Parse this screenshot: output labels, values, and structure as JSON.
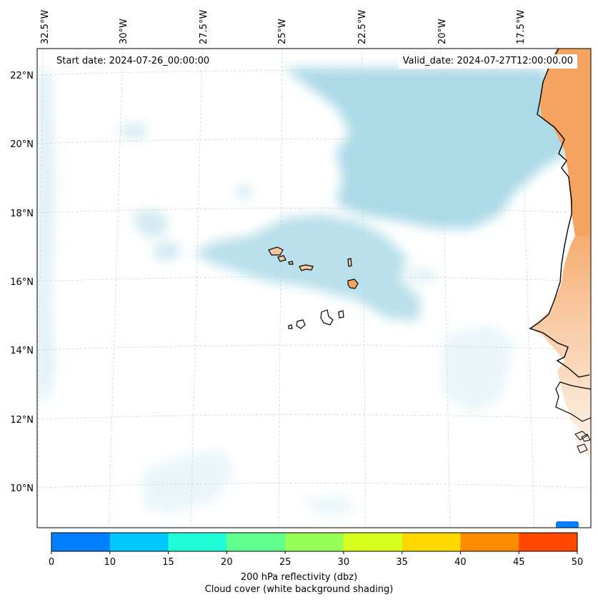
{
  "header": {
    "start_date": "Start date: 2024-07-26_00:00:00",
    "valid_date": "Valid_date: 2024-07-27T12:00:00.00"
  },
  "lon_labels": [
    "32.5°W",
    "30°W",
    "27.5°W",
    "25°W",
    "22.5°W",
    "20°W",
    "17.5°W"
  ],
  "lat_labels": [
    "22°N",
    "20°N",
    "18°N",
    "16°N",
    "14°N",
    "12°N",
    "10°N"
  ],
  "colorbar": {
    "ticks": [
      "0",
      "10",
      "15",
      "20",
      "25",
      "30",
      "35",
      "40",
      "45",
      "50"
    ],
    "colors": [
      "#0080ff",
      "#00c8ff",
      "#20ffd8",
      "#60ff90",
      "#98ff58",
      "#d8ff20",
      "#ffd800",
      "#ff8c00",
      "#ff4800"
    ],
    "label_line1": "200 hPa reflectivity (dbz)",
    "label_line2": "Cloud cover (white background shading)"
  },
  "style": {
    "cloud_color": "#a8d8e6",
    "land_color": "#f4a460",
    "grid_color": "#c8c8c8"
  }
}
